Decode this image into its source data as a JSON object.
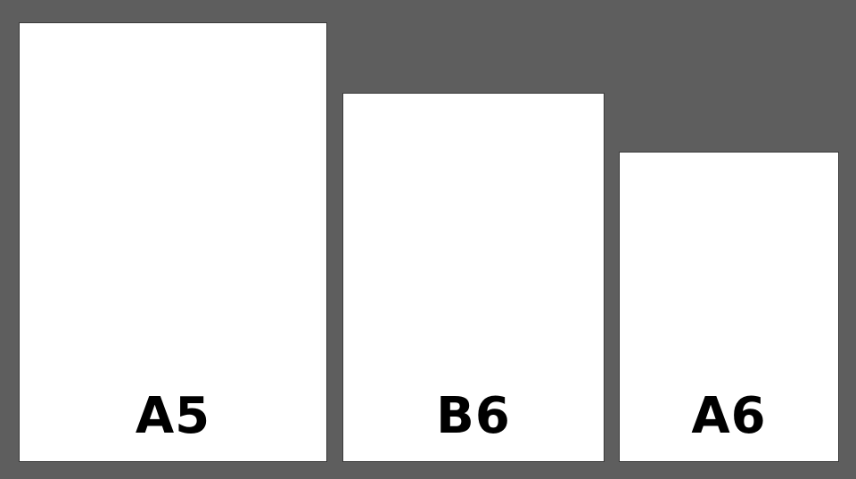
{
  "colors": {
    "background": "#5e5e5e",
    "sheet_fill": "#ffffff",
    "sheet_border": "#3a3a3a",
    "label_text": "#000000"
  },
  "sheets": [
    {
      "label": "A5"
    },
    {
      "label": "B6"
    },
    {
      "label": "A6"
    }
  ]
}
